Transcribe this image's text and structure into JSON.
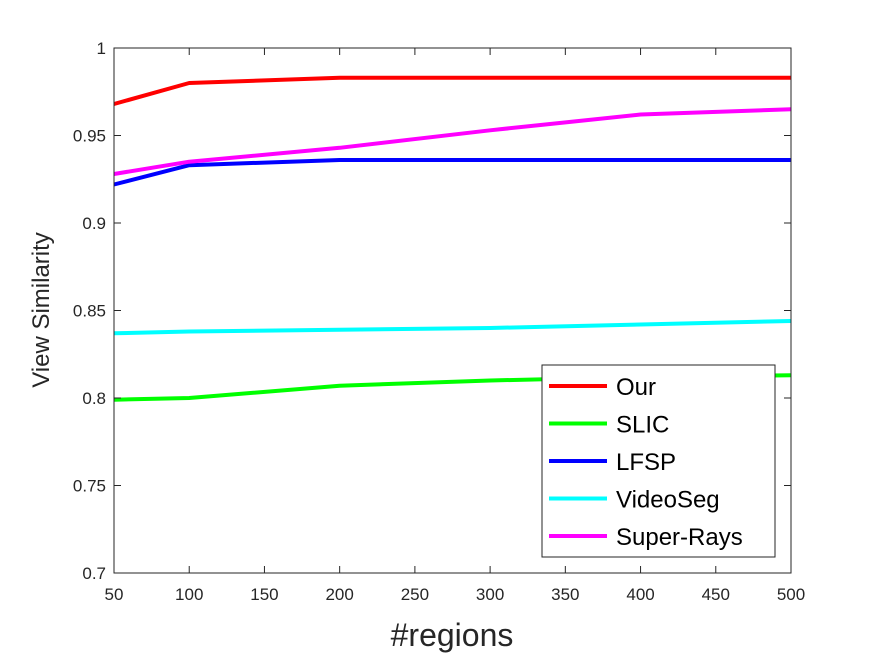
{
  "chart_data": {
    "type": "line",
    "title": "",
    "xlabel": "#regions",
    "ylabel": "View Similarity",
    "xlim": [
      50,
      500
    ],
    "ylim": [
      0.7,
      1.0
    ],
    "xticks": [
      "50",
      "100",
      "150",
      "200",
      "250",
      "300",
      "350",
      "400",
      "450",
      "500"
    ],
    "yticks": [
      "0.7",
      "0.75",
      "0.8",
      "0.85",
      "0.9",
      "0.95",
      "1"
    ],
    "x": [
      50,
      100,
      200,
      300,
      400,
      500
    ],
    "grid": false,
    "legend_position": "bottom-right",
    "series": [
      {
        "name": "Our",
        "color": "#ff0000",
        "values": [
          0.968,
          0.98,
          0.983,
          0.983,
          0.983,
          0.983
        ]
      },
      {
        "name": "SLIC",
        "color": "#00ff00",
        "values": [
          0.799,
          0.8,
          0.807,
          0.81,
          0.812,
          0.813
        ]
      },
      {
        "name": "LFSP",
        "color": "#0000ff",
        "values": [
          0.922,
          0.933,
          0.936,
          0.936,
          0.936,
          0.936
        ]
      },
      {
        "name": "VideoSeg",
        "color": "#00ffff",
        "values": [
          0.837,
          0.838,
          0.839,
          0.84,
          0.842,
          0.844
        ]
      },
      {
        "name": "Super-Rays",
        "color": "#ff00ff",
        "values": [
          0.928,
          0.935,
          0.943,
          0.953,
          0.962,
          0.965
        ]
      }
    ]
  }
}
